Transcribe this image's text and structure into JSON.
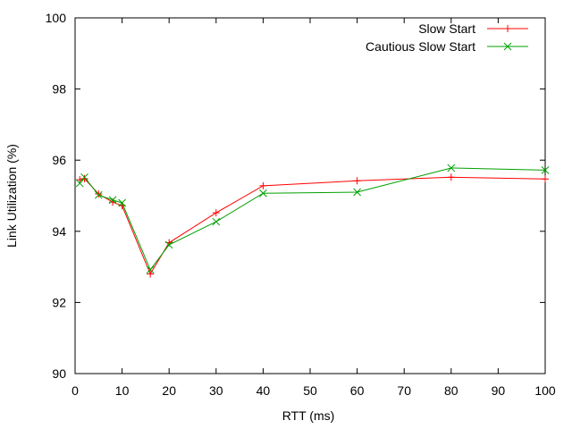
{
  "chart_data": {
    "type": "line",
    "xlabel": "RTT (ms)",
    "ylabel": "Link Utilization (%)",
    "xlim": [
      0,
      100
    ],
    "ylim": [
      90,
      100
    ],
    "xticks": [
      0,
      10,
      20,
      30,
      40,
      50,
      60,
      70,
      80,
      90,
      100
    ],
    "yticks": [
      90,
      92,
      94,
      96,
      98,
      100
    ],
    "grid": false,
    "legend_position": "top-right",
    "series": [
      {
        "name": "Slow Start",
        "color": "#ff0000",
        "marker": "plus",
        "x": [
          1,
          2,
          5,
          8,
          10,
          16,
          20,
          30,
          40,
          60,
          80,
          100
        ],
        "y": [
          95.45,
          95.48,
          95.05,
          94.82,
          94.72,
          92.8,
          93.68,
          94.52,
          95.28,
          95.42,
          95.52,
          95.47
        ]
      },
      {
        "name": "Cautious Slow Start",
        "color": "#00a000",
        "marker": "cross",
        "x": [
          1,
          2,
          5,
          8,
          10,
          16,
          20,
          30,
          40,
          60,
          80,
          100
        ],
        "y": [
          95.35,
          95.52,
          95.02,
          94.88,
          94.8,
          92.92,
          93.62,
          94.27,
          95.07,
          95.1,
          95.78,
          95.72
        ]
      }
    ]
  }
}
